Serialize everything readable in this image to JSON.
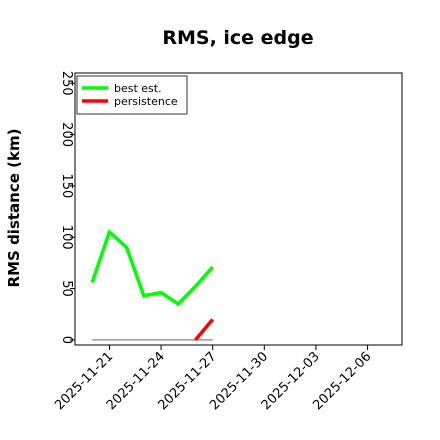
{
  "chart_data": {
    "type": "line",
    "title": "RMS, ice edge",
    "ylabel": "RMS distance (km)",
    "xlabel": "",
    "ylim": [
      -5,
      260
    ],
    "yticks": [
      0,
      50,
      100,
      150,
      200,
      250
    ],
    "xlim": [
      "2025-11-19",
      "2025-12-08"
    ],
    "xticks": [
      "2025-11-21",
      "2025-11-24",
      "2025-11-27",
      "2025-11-30",
      "2025-12-03",
      "2025-12-06"
    ],
    "legend_position": "top-left",
    "grid": false,
    "series": [
      {
        "name": "best est.",
        "color": "#00ff00",
        "x": [
          "2025-11-20",
          "2025-11-21",
          "2025-11-22",
          "2025-11-23",
          "2025-11-24",
          "2025-11-25",
          "2025-11-26",
          "2025-11-27"
        ],
        "y": [
          56,
          105,
          90,
          43,
          46,
          35,
          52,
          71
        ]
      },
      {
        "name": "persistence",
        "color": "#ff0000",
        "x": [
          "2025-11-26",
          "2025-11-27"
        ],
        "y": [
          0,
          20
        ]
      }
    ],
    "reference_line": {
      "color": "#808080",
      "x": [
        "2025-11-20",
        "2025-11-27"
      ],
      "y": [
        0,
        0
      ]
    }
  }
}
